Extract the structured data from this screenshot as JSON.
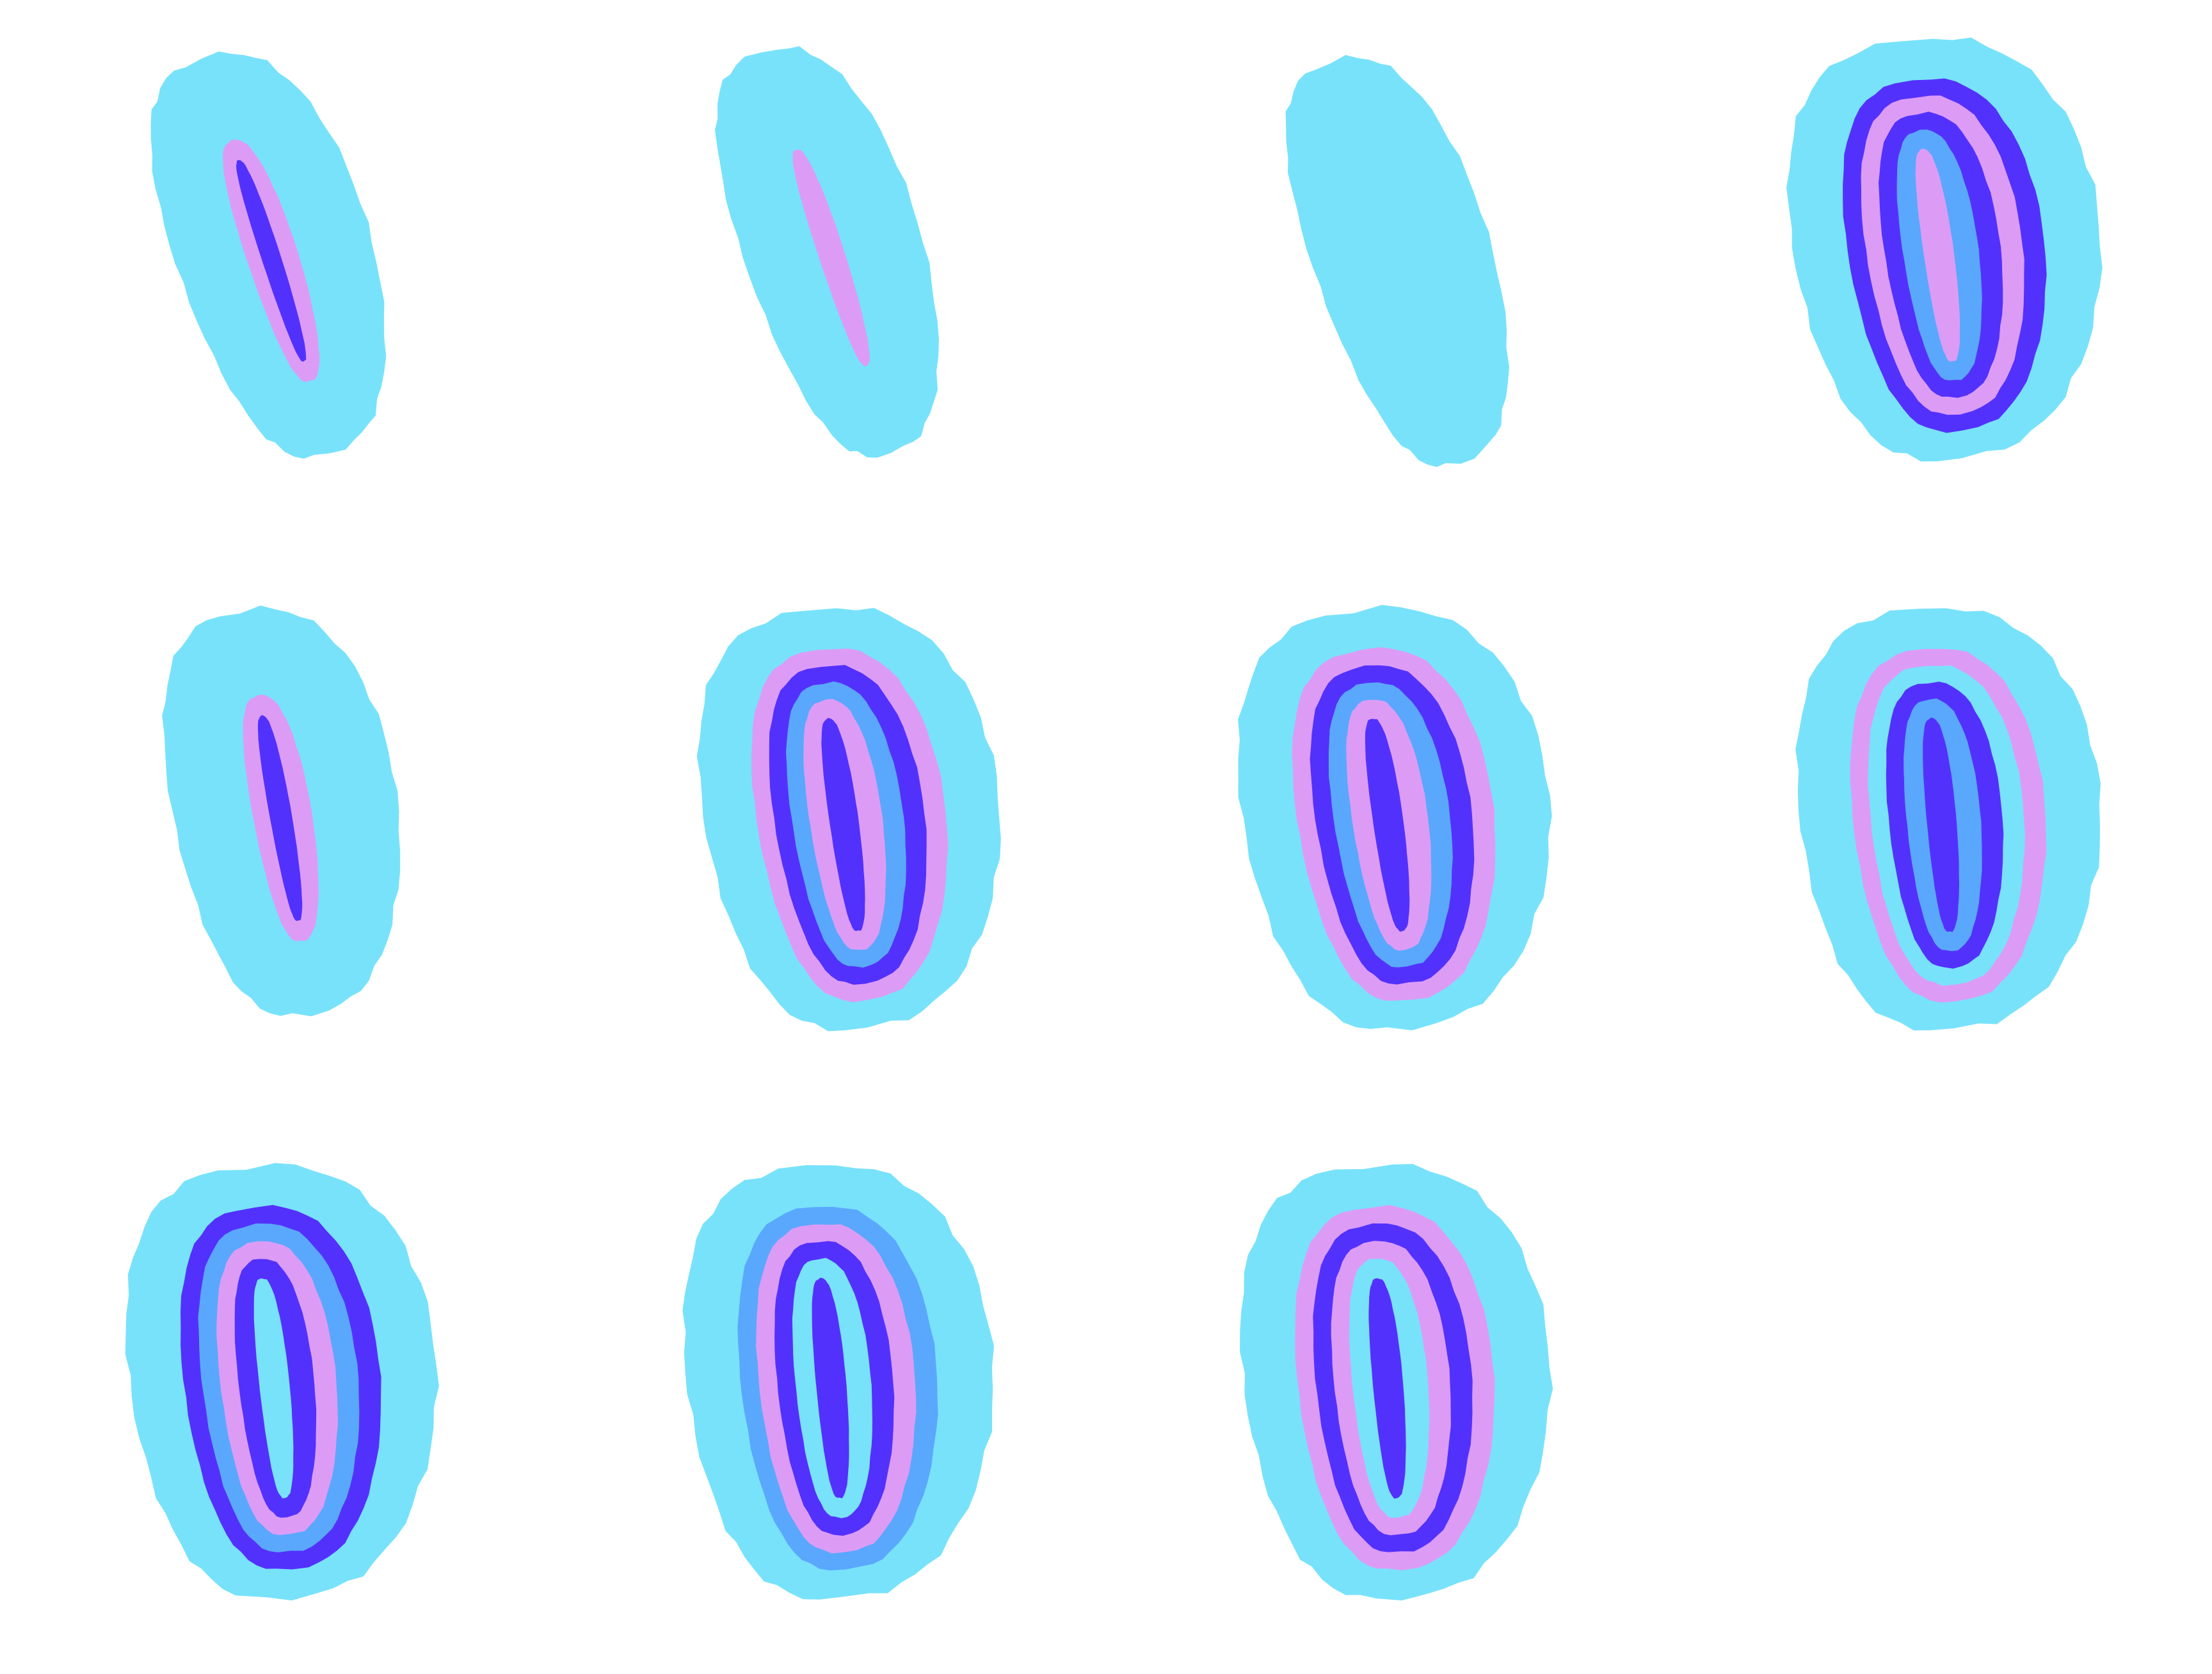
{
  "palette": {
    "background": "#ffffff",
    "cyan": "#78e2fb",
    "lavender": "#dc9cf6",
    "indigo": "#5331fd",
    "periwinkle": "#5aa8fd"
  },
  "shapes": [
    {
      "label": "",
      "rings": [
        "cyan",
        "lavender",
        "indigo"
      ]
    },
    {
      "label": "",
      "rings": [
        "cyan",
        "lavender"
      ]
    },
    {
      "label": "",
      "rings": [
        "cyan"
      ]
    },
    {
      "label": "",
      "rings": [
        "cyan",
        "indigo",
        "lavender",
        "indigo",
        "periwinkle",
        "lavender"
      ]
    },
    {
      "label": "",
      "rings": [
        "cyan",
        "lavender",
        "indigo"
      ]
    },
    {
      "label": "",
      "rings": [
        "cyan",
        "lavender",
        "indigo",
        "periwinkle",
        "lavender",
        "indigo"
      ]
    },
    {
      "label": "",
      "rings": [
        "cyan",
        "lavender",
        "indigo",
        "periwinkle",
        "lavender",
        "indigo"
      ]
    },
    {
      "label": "",
      "rings": [
        "cyan",
        "lavender",
        "cyan",
        "indigo",
        "periwinkle",
        "indigo"
      ]
    },
    {
      "label": "",
      "rings": [
        "cyan",
        "indigo",
        "periwinkle",
        "lavender",
        "indigo",
        "cyan"
      ]
    },
    {
      "label": "",
      "rings": [
        "cyan",
        "periwinkle",
        "lavender",
        "indigo",
        "cyan",
        "indigo"
      ]
    },
    {
      "label": "",
      "rings": [
        "cyan",
        "lavender",
        "indigo",
        "lavender",
        "cyan",
        "indigo"
      ]
    }
  ]
}
